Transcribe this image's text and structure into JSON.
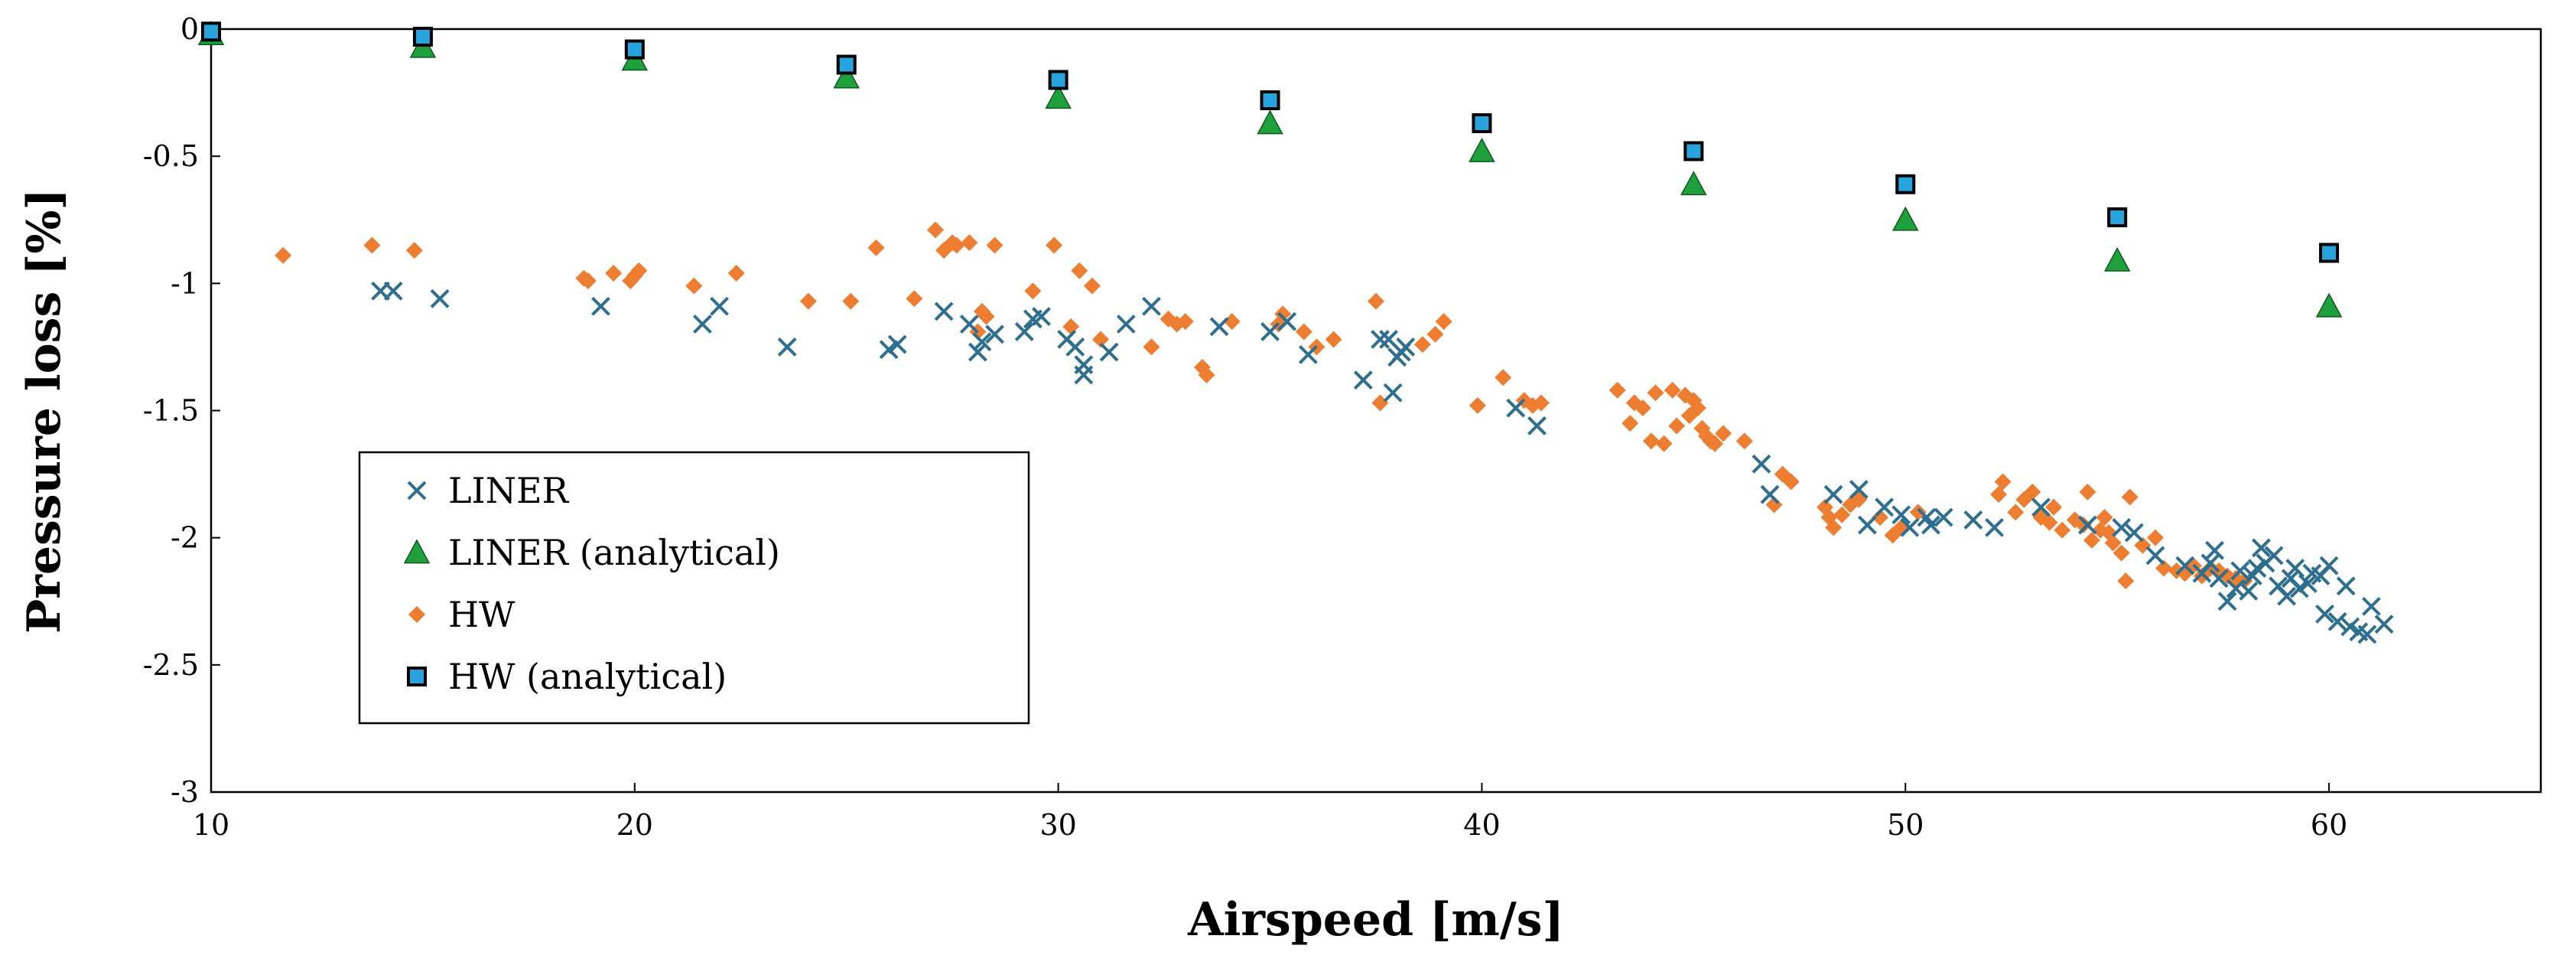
{
  "chart_data": {
    "type": "scatter",
    "title": "",
    "xlabel": "Airspeed [m/s]",
    "ylabel": "Pressure loss [%]",
    "xlim": [
      10,
      65
    ],
    "ylim": [
      -3,
      0
    ],
    "xticks": [
      10,
      20,
      30,
      40,
      50,
      60
    ],
    "yticks": [
      0,
      -0.5,
      -1,
      -1.5,
      -2,
      -2.5,
      -3
    ],
    "xtick_labels": [
      "10",
      "20",
      "30",
      "40",
      "50",
      "60"
    ],
    "ytick_labels": [
      "0",
      "-0.5",
      "-1",
      "-1.5",
      "-2",
      "-2.5",
      "-3"
    ],
    "grid": false,
    "legend_position": "bottom-left",
    "series": [
      {
        "name": "LINER",
        "marker": "x",
        "color": "#2E6E8E",
        "points": [
          [
            14.0,
            -1.03
          ],
          [
            14.3,
            -1.03
          ],
          [
            15.4,
            -1.06
          ],
          [
            19.2,
            -1.09
          ],
          [
            21.6,
            -1.16
          ],
          [
            22.0,
            -1.09
          ],
          [
            23.6,
            -1.25
          ],
          [
            26.0,
            -1.26
          ],
          [
            26.2,
            -1.24
          ],
          [
            27.3,
            -1.11
          ],
          [
            27.9,
            -1.16
          ],
          [
            28.1,
            -1.27
          ],
          [
            28.2,
            -1.23
          ],
          [
            28.5,
            -1.2
          ],
          [
            29.2,
            -1.19
          ],
          [
            29.4,
            -1.14
          ],
          [
            29.6,
            -1.13
          ],
          [
            30.2,
            -1.22
          ],
          [
            30.4,
            -1.25
          ],
          [
            30.6,
            -1.36
          ],
          [
            30.6,
            -1.32
          ],
          [
            31.2,
            -1.27
          ],
          [
            31.6,
            -1.16
          ],
          [
            32.2,
            -1.09
          ],
          [
            33.8,
            -1.17
          ],
          [
            35.0,
            -1.19
          ],
          [
            35.4,
            -1.15
          ],
          [
            35.9,
            -1.28
          ],
          [
            37.2,
            -1.38
          ],
          [
            37.6,
            -1.22
          ],
          [
            37.8,
            -1.22
          ],
          [
            37.9,
            -1.43
          ],
          [
            38.0,
            -1.29
          ],
          [
            38.1,
            -1.27
          ],
          [
            38.2,
            -1.25
          ],
          [
            40.8,
            -1.49
          ],
          [
            41.3,
            -1.56
          ],
          [
            46.6,
            -1.71
          ],
          [
            46.8,
            -1.83
          ],
          [
            48.3,
            -1.83
          ],
          [
            48.9,
            -1.81
          ],
          [
            49.1,
            -1.95
          ],
          [
            49.5,
            -1.88
          ],
          [
            49.9,
            -1.91
          ],
          [
            50.1,
            -1.96
          ],
          [
            50.5,
            -1.92
          ],
          [
            50.6,
            -1.95
          ],
          [
            50.9,
            -1.92
          ],
          [
            51.6,
            -1.93
          ],
          [
            52.1,
            -1.96
          ],
          [
            53.2,
            -1.88
          ],
          [
            54.3,
            -1.95
          ],
          [
            55.1,
            -1.96
          ],
          [
            55.4,
            -1.98
          ],
          [
            55.9,
            -2.07
          ],
          [
            56.6,
            -2.11
          ],
          [
            57.0,
            -2.14
          ],
          [
            57.2,
            -2.1
          ],
          [
            57.3,
            -2.05
          ],
          [
            57.4,
            -2.16
          ],
          [
            57.6,
            -2.25
          ],
          [
            57.8,
            -2.2
          ],
          [
            57.9,
            -2.13
          ],
          [
            58.1,
            -2.21
          ],
          [
            58.2,
            -2.15
          ],
          [
            58.3,
            -2.12
          ],
          [
            58.4,
            -2.04
          ],
          [
            58.5,
            -2.1
          ],
          [
            58.7,
            -2.07
          ],
          [
            58.8,
            -2.19
          ],
          [
            59.0,
            -2.23
          ],
          [
            59.1,
            -2.16
          ],
          [
            59.2,
            -2.12
          ],
          [
            59.3,
            -2.2
          ],
          [
            59.5,
            -2.18
          ],
          [
            59.6,
            -2.14
          ],
          [
            59.8,
            -2.15
          ],
          [
            59.9,
            -2.3
          ],
          [
            60.0,
            -2.11
          ],
          [
            60.2,
            -2.33
          ],
          [
            60.4,
            -2.19
          ],
          [
            60.5,
            -2.35
          ],
          [
            60.7,
            -2.37
          ],
          [
            60.9,
            -2.38
          ],
          [
            61.0,
            -2.27
          ],
          [
            61.3,
            -2.34
          ]
        ]
      },
      {
        "name": "LINER (analytical)",
        "marker": "triangle",
        "color": "#1FA03C",
        "points": [
          [
            10,
            -0.02
          ],
          [
            15,
            -0.07
          ],
          [
            20,
            -0.12
          ],
          [
            25,
            -0.19
          ],
          [
            30,
            -0.27
          ],
          [
            35,
            -0.37
          ],
          [
            40,
            -0.48
          ],
          [
            45,
            -0.61
          ],
          [
            50,
            -0.75
          ],
          [
            55,
            -0.91
          ],
          [
            60,
            -1.09
          ]
        ]
      },
      {
        "name": "HW",
        "marker": "diamond",
        "color": "#ED7D31",
        "points": [
          [
            11.7,
            -0.89
          ],
          [
            13.8,
            -0.85
          ],
          [
            14.8,
            -0.87
          ],
          [
            18.8,
            -0.98
          ],
          [
            18.9,
            -0.99
          ],
          [
            19.5,
            -0.96
          ],
          [
            19.9,
            -0.99
          ],
          [
            20.0,
            -0.97
          ],
          [
            20.1,
            -0.95
          ],
          [
            21.4,
            -1.01
          ],
          [
            22.4,
            -0.96
          ],
          [
            24.1,
            -1.07
          ],
          [
            25.1,
            -1.07
          ],
          [
            25.7,
            -0.86
          ],
          [
            26.6,
            -1.06
          ],
          [
            27.1,
            -0.79
          ],
          [
            27.3,
            -0.87
          ],
          [
            27.5,
            -0.84
          ],
          [
            27.6,
            -0.85
          ],
          [
            27.9,
            -0.84
          ],
          [
            28.1,
            -1.19
          ],
          [
            28.2,
            -1.11
          ],
          [
            28.3,
            -1.13
          ],
          [
            28.5,
            -0.85
          ],
          [
            29.4,
            -1.03
          ],
          [
            29.9,
            -0.85
          ],
          [
            30.3,
            -1.17
          ],
          [
            30.5,
            -0.95
          ],
          [
            30.8,
            -1.01
          ],
          [
            31.0,
            -1.22
          ],
          [
            32.2,
            -1.25
          ],
          [
            32.6,
            -1.14
          ],
          [
            32.8,
            -1.16
          ],
          [
            33.0,
            -1.15
          ],
          [
            33.4,
            -1.33
          ],
          [
            33.5,
            -1.36
          ],
          [
            34.1,
            -1.15
          ],
          [
            35.2,
            -1.16
          ],
          [
            35.3,
            -1.12
          ],
          [
            35.8,
            -1.19
          ],
          [
            36.1,
            -1.25
          ],
          [
            36.5,
            -1.22
          ],
          [
            37.5,
            -1.07
          ],
          [
            37.6,
            -1.47
          ],
          [
            38.6,
            -1.24
          ],
          [
            38.9,
            -1.2
          ],
          [
            39.1,
            -1.15
          ],
          [
            39.9,
            -1.48
          ],
          [
            40.5,
            -1.37
          ],
          [
            41.0,
            -1.46
          ],
          [
            41.2,
            -1.48
          ],
          [
            41.4,
            -1.47
          ],
          [
            43.2,
            -1.42
          ],
          [
            43.5,
            -1.55
          ],
          [
            43.6,
            -1.47
          ],
          [
            43.8,
            -1.49
          ],
          [
            44.0,
            -1.62
          ],
          [
            44.1,
            -1.43
          ],
          [
            44.3,
            -1.63
          ],
          [
            44.5,
            -1.42
          ],
          [
            44.6,
            -1.56
          ],
          [
            44.8,
            -1.44
          ],
          [
            44.9,
            -1.52
          ],
          [
            45.0,
            -1.46
          ],
          [
            45.1,
            -1.49
          ],
          [
            45.2,
            -1.57
          ],
          [
            45.3,
            -1.6
          ],
          [
            45.4,
            -1.62
          ],
          [
            45.5,
            -1.63
          ],
          [
            45.7,
            -1.59
          ],
          [
            46.2,
            -1.62
          ],
          [
            46.9,
            -1.87
          ],
          [
            47.1,
            -1.75
          ],
          [
            47.3,
            -1.78
          ],
          [
            48.1,
            -1.88
          ],
          [
            48.2,
            -1.92
          ],
          [
            48.3,
            -1.96
          ],
          [
            48.5,
            -1.91
          ],
          [
            48.7,
            -1.87
          ],
          [
            48.9,
            -1.85
          ],
          [
            49.4,
            -1.92
          ],
          [
            49.7,
            -1.99
          ],
          [
            49.9,
            -1.96
          ],
          [
            50.3,
            -1.9
          ],
          [
            52.2,
            -1.83
          ],
          [
            52.3,
            -1.78
          ],
          [
            52.6,
            -1.9
          ],
          [
            52.8,
            -1.85
          ],
          [
            53.0,
            -1.82
          ],
          [
            53.2,
            -1.92
          ],
          [
            53.4,
            -1.94
          ],
          [
            53.5,
            -1.88
          ],
          [
            53.7,
            -1.97
          ],
          [
            54.0,
            -1.93
          ],
          [
            54.2,
            -1.95
          ],
          [
            54.3,
            -1.82
          ],
          [
            54.4,
            -2.01
          ],
          [
            54.6,
            -1.97
          ],
          [
            54.7,
            -1.92
          ],
          [
            54.8,
            -1.98
          ],
          [
            54.9,
            -2.02
          ],
          [
            55.1,
            -2.06
          ],
          [
            55.2,
            -2.17
          ],
          [
            55.3,
            -1.84
          ],
          [
            55.6,
            -2.03
          ],
          [
            55.9,
            -2.0
          ],
          [
            56.1,
            -2.12
          ],
          [
            56.4,
            -2.13
          ],
          [
            56.6,
            -2.14
          ],
          [
            56.8,
            -2.11
          ],
          [
            57.0,
            -2.15
          ],
          [
            57.2,
            -2.12
          ],
          [
            57.4,
            -2.13
          ],
          [
            57.6,
            -2.15
          ],
          [
            57.8,
            -2.16
          ],
          [
            58.0,
            -2.17
          ]
        ]
      },
      {
        "name": "HW (analytical)",
        "marker": "square",
        "color": "#29A3DE",
        "points": [
          [
            10,
            -0.01
          ],
          [
            15,
            -0.03
          ],
          [
            20,
            -0.08
          ],
          [
            25,
            -0.14
          ],
          [
            30,
            -0.2
          ],
          [
            35,
            -0.28
          ],
          [
            40,
            -0.37
          ],
          [
            45,
            -0.48
          ],
          [
            50,
            -0.61
          ],
          [
            55,
            -0.74
          ],
          [
            60,
            -0.88
          ]
        ]
      }
    ]
  }
}
